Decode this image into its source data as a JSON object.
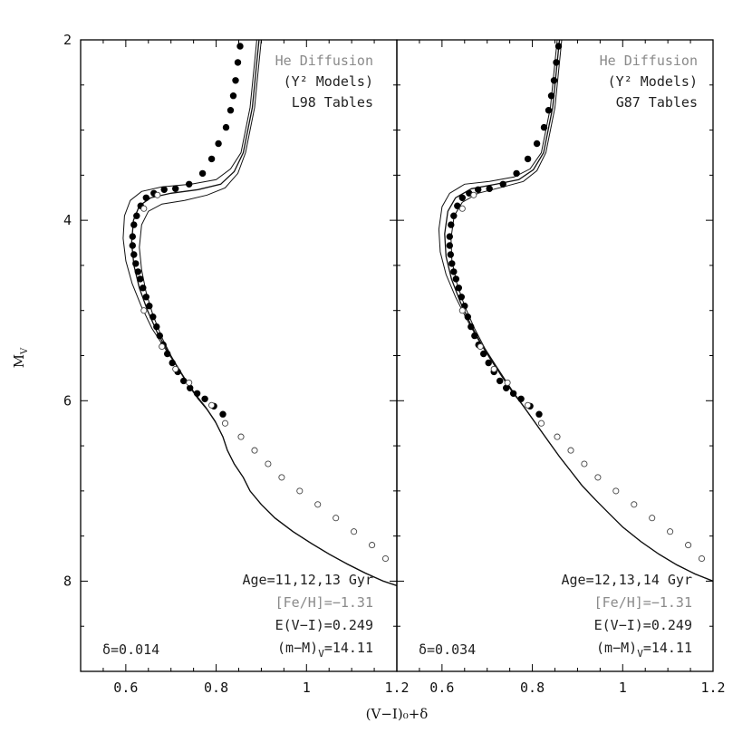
{
  "figure": {
    "xlabel": "(V−I)₀+δ",
    "ylabel": "M",
    "ylabel_sub": "V"
  },
  "chart_data": [
    {
      "type": "scatter",
      "panel": "left",
      "xlim": [
        0.5,
        1.2
      ],
      "ylim": [
        9.0,
        2.0
      ],
      "y_inverted": true,
      "xticks": [
        0.6,
        0.8,
        1.0,
        1.2
      ],
      "xtick_labels": [
        "0.6",
        "0.8",
        "1",
        "1.2"
      ],
      "yticks": [
        2,
        4,
        6,
        8
      ],
      "ytick_labels": [
        "2",
        "4",
        "6",
        "8"
      ],
      "legend_lines": [
        "He Diffusion",
        "(Y² Models)",
        "L98 Tables"
      ],
      "annotations": {
        "age": "Age=11,12,13 Gyr",
        "feh": "[Fe/H]=−1.31",
        "ext": "E(V−I)=0.249",
        "dm_main": "(m−M)",
        "dm_sub": "V",
        "dm_val": "=14.11",
        "delta": "δ=0.014"
      },
      "series": [
        {
          "marker": "filled-circle",
          "x": [
            0.853,
            0.848,
            0.843,
            0.838,
            0.832,
            0.822,
            0.805,
            0.79,
            0.77,
            0.74,
            0.71,
            0.685,
            0.662,
            0.645,
            0.633,
            0.624,
            0.618,
            0.615,
            0.615,
            0.618,
            0.622,
            0.627,
            0.632,
            0.638,
            0.645,
            0.652,
            0.66,
            0.668,
            0.675,
            0.683,
            0.692,
            0.703,
            0.715,
            0.728,
            0.742,
            0.758,
            0.775,
            0.795,
            0.815
          ],
          "y": [
            2.07,
            2.25,
            2.45,
            2.62,
            2.78,
            2.97,
            3.15,
            3.32,
            3.48,
            3.6,
            3.65,
            3.66,
            3.7,
            3.75,
            3.84,
            3.95,
            4.05,
            4.18,
            4.28,
            4.38,
            4.48,
            4.57,
            4.65,
            4.75,
            4.85,
            4.95,
            5.07,
            5.18,
            5.28,
            5.38,
            5.48,
            5.58,
            5.68,
            5.78,
            5.86,
            5.92,
            5.98,
            6.06,
            6.15
          ]
        },
        {
          "marker": "open-circle",
          "x": [
            0.67,
            0.64,
            0.64,
            0.68,
            0.71,
            0.74,
            0.79,
            0.82,
            0.855,
            0.885,
            0.915,
            0.945,
            0.985,
            1.025,
            1.065,
            1.105,
            1.145,
            1.175
          ],
          "y": [
            3.72,
            3.87,
            5.0,
            5.4,
            5.65,
            5.8,
            6.05,
            6.25,
            6.4,
            6.55,
            6.7,
            6.85,
            7.0,
            7.15,
            7.3,
            7.45,
            7.6,
            7.75
          ]
        }
      ],
      "isochrones": [
        {
          "name": "11 Gyr",
          "x": [
            0.9,
            0.895,
            0.89,
            0.885,
            0.875,
            0.865,
            0.848,
            0.82,
            0.78,
            0.73,
            0.68,
            0.65,
            0.635,
            0.63,
            0.635,
            0.645,
            0.66,
            0.68,
            0.7,
            0.72,
            0.74,
            0.76,
            0.78,
            0.8,
            0.815,
            0.825,
            0.84,
            0.86,
            0.875,
            0.9,
            0.93,
            0.97,
            1.01,
            1.05,
            1.09,
            1.13,
            1.17,
            1.2
          ],
          "y": [
            2.0,
            2.25,
            2.5,
            2.75,
            3.0,
            3.25,
            3.48,
            3.64,
            3.72,
            3.78,
            3.82,
            3.9,
            4.05,
            4.3,
            4.55,
            4.8,
            5.05,
            5.3,
            5.5,
            5.68,
            5.84,
            5.98,
            6.1,
            6.25,
            6.4,
            6.55,
            6.7,
            6.85,
            7.0,
            7.15,
            7.3,
            7.45,
            7.58,
            7.7,
            7.81,
            7.91,
            8.0,
            8.05
          ]
        },
        {
          "name": "12 Gyr",
          "x": [
            0.895,
            0.89,
            0.885,
            0.88,
            0.87,
            0.86,
            0.84,
            0.81,
            0.76,
            0.7,
            0.655,
            0.63,
            0.617,
            0.613,
            0.618,
            0.63,
            0.648,
            0.67,
            0.693,
            0.715,
            0.736,
            0.757,
            0.778,
            0.798,
            0.815,
            0.825,
            0.84,
            0.86,
            0.875,
            0.9,
            0.93,
            0.97,
            1.01,
            1.05,
            1.09,
            1.13,
            1.17,
            1.2
          ],
          "y": [
            2.0,
            2.25,
            2.5,
            2.75,
            3.0,
            3.25,
            3.46,
            3.6,
            3.66,
            3.7,
            3.75,
            3.84,
            4.0,
            4.25,
            4.5,
            4.75,
            5.0,
            5.25,
            5.45,
            5.63,
            5.8,
            5.95,
            6.08,
            6.23,
            6.4,
            6.55,
            6.7,
            6.85,
            7.0,
            7.15,
            7.3,
            7.45,
            7.58,
            7.7,
            7.81,
            7.91,
            8.0,
            8.05
          ]
        },
        {
          "name": "13 Gyr",
          "x": [
            0.89,
            0.885,
            0.88,
            0.875,
            0.865,
            0.855,
            0.832,
            0.8,
            0.745,
            0.68,
            0.635,
            0.61,
            0.597,
            0.594,
            0.6,
            0.614,
            0.634,
            0.658,
            0.684,
            0.708,
            0.731,
            0.753,
            0.775,
            0.797,
            0.815,
            0.825,
            0.84,
            0.86,
            0.875,
            0.9,
            0.93,
            0.97,
            1.01,
            1.05,
            1.09,
            1.13,
            1.17,
            1.2
          ],
          "y": [
            2.0,
            2.25,
            2.5,
            2.75,
            3.0,
            3.25,
            3.43,
            3.55,
            3.6,
            3.63,
            3.68,
            3.78,
            3.95,
            4.2,
            4.45,
            4.7,
            4.95,
            5.2,
            5.4,
            5.58,
            5.76,
            5.92,
            6.06,
            6.22,
            6.4,
            6.55,
            6.7,
            6.85,
            7.0,
            7.15,
            7.3,
            7.45,
            7.58,
            7.7,
            7.81,
            7.91,
            8.0,
            8.05
          ]
        }
      ]
    },
    {
      "type": "scatter",
      "panel": "right",
      "xlim": [
        0.5,
        1.2
      ],
      "ylim": [
        9.0,
        2.0
      ],
      "y_inverted": true,
      "xticks": [
        0.6,
        0.8,
        1.0,
        1.2
      ],
      "xtick_labels": [
        "0.6",
        "0.8",
        "1",
        "1.2"
      ],
      "yticks": [
        2,
        4,
        6,
        8
      ],
      "legend_lines": [
        "He Diffusion",
        "(Y² Models)",
        "G87 Tables"
      ],
      "annotations": {
        "age": "Age=12,13,14 Gyr",
        "feh": "[Fe/H]=−1.31",
        "ext": "E(V−I)=0.249",
        "dm_main": "(m−M)",
        "dm_sub": "V",
        "dm_val": "=14.11",
        "delta": "δ=0.034"
      },
      "series": [
        {
          "marker": "filled-circle",
          "x": [
            0.858,
            0.853,
            0.848,
            0.842,
            0.836,
            0.826,
            0.81,
            0.79,
            0.765,
            0.735,
            0.705,
            0.68,
            0.66,
            0.645,
            0.634,
            0.626,
            0.62,
            0.617,
            0.617,
            0.619,
            0.622,
            0.626,
            0.631,
            0.637,
            0.643,
            0.65,
            0.657,
            0.664,
            0.672,
            0.681,
            0.692,
            0.703,
            0.715,
            0.728,
            0.742,
            0.758,
            0.775,
            0.795,
            0.815
          ],
          "y": [
            2.07,
            2.25,
            2.45,
            2.62,
            2.78,
            2.97,
            3.15,
            3.32,
            3.48,
            3.6,
            3.65,
            3.66,
            3.7,
            3.75,
            3.84,
            3.95,
            4.05,
            4.18,
            4.28,
            4.38,
            4.48,
            4.57,
            4.65,
            4.75,
            4.85,
            4.95,
            5.07,
            5.18,
            5.28,
            5.38,
            5.48,
            5.58,
            5.68,
            5.78,
            5.86,
            5.92,
            5.98,
            6.06,
            6.15
          ]
        },
        {
          "marker": "open-circle",
          "x": [
            0.67,
            0.645,
            0.645,
            0.685,
            0.715,
            0.745,
            0.79,
            0.82,
            0.855,
            0.885,
            0.915,
            0.945,
            0.985,
            1.025,
            1.065,
            1.105,
            1.145,
            1.175
          ],
          "y": [
            3.72,
            3.87,
            5.0,
            5.4,
            5.65,
            5.8,
            6.05,
            6.25,
            6.4,
            6.55,
            6.7,
            6.85,
            7.0,
            7.15,
            7.3,
            7.45,
            7.6,
            7.75
          ]
        }
      ],
      "isochrones": [
        {
          "name": "12 Gyr",
          "x": [
            0.865,
            0.86,
            0.855,
            0.85,
            0.84,
            0.83,
            0.81,
            0.78,
            0.735,
            0.68,
            0.645,
            0.627,
            0.62,
            0.622,
            0.633,
            0.65,
            0.672,
            0.695,
            0.718,
            0.74,
            0.76,
            0.78,
            0.8,
            0.82,
            0.84,
            0.86,
            0.885,
            0.91,
            0.94,
            0.97,
            1.0,
            1.04,
            1.08,
            1.12,
            1.16,
            1.2
          ],
          "y": [
            2.0,
            2.25,
            2.5,
            2.75,
            3.0,
            3.25,
            3.45,
            3.57,
            3.63,
            3.7,
            3.8,
            3.95,
            4.2,
            4.45,
            4.7,
            4.95,
            5.2,
            5.42,
            5.6,
            5.77,
            5.92,
            6.06,
            6.2,
            6.34,
            6.48,
            6.62,
            6.78,
            6.94,
            7.1,
            7.25,
            7.4,
            7.56,
            7.7,
            7.82,
            7.92,
            8.0
          ]
        },
        {
          "name": "13 Gyr",
          "x": [
            0.86,
            0.855,
            0.85,
            0.845,
            0.835,
            0.825,
            0.802,
            0.77,
            0.72,
            0.665,
            0.63,
            0.613,
            0.606,
            0.609,
            0.621,
            0.64,
            0.663,
            0.688,
            0.713,
            0.736,
            0.758,
            0.779,
            0.8,
            0.82,
            0.84,
            0.86,
            0.885,
            0.91,
            0.94,
            0.97,
            1.0,
            1.04,
            1.08,
            1.12,
            1.16,
            1.2
          ],
          "y": [
            2.0,
            2.25,
            2.5,
            2.75,
            3.0,
            3.25,
            3.44,
            3.55,
            3.6,
            3.65,
            3.75,
            3.9,
            4.15,
            4.4,
            4.65,
            4.9,
            5.15,
            5.38,
            5.57,
            5.75,
            5.91,
            6.05,
            6.2,
            6.34,
            6.48,
            6.62,
            6.78,
            6.94,
            7.1,
            7.25,
            7.4,
            7.56,
            7.7,
            7.82,
            7.92,
            8.0
          ]
        },
        {
          "name": "14 Gyr",
          "x": [
            0.855,
            0.85,
            0.845,
            0.84,
            0.83,
            0.82,
            0.795,
            0.76,
            0.705,
            0.65,
            0.617,
            0.6,
            0.593,
            0.596,
            0.609,
            0.63,
            0.655,
            0.681,
            0.707,
            0.732,
            0.755,
            0.777,
            0.799,
            0.82,
            0.84,
            0.86,
            0.885,
            0.91,
            0.94,
            0.97,
            1.0,
            1.04,
            1.08,
            1.12,
            1.16,
            1.2
          ],
          "y": [
            2.0,
            2.25,
            2.5,
            2.75,
            3.0,
            3.25,
            3.43,
            3.52,
            3.57,
            3.6,
            3.7,
            3.85,
            4.1,
            4.35,
            4.6,
            4.85,
            5.1,
            5.33,
            5.54,
            5.73,
            5.9,
            6.04,
            6.19,
            6.34,
            6.48,
            6.62,
            6.78,
            6.94,
            7.1,
            7.25,
            7.4,
            7.56,
            7.7,
            7.82,
            7.92,
            8.0
          ]
        }
      ]
    }
  ]
}
